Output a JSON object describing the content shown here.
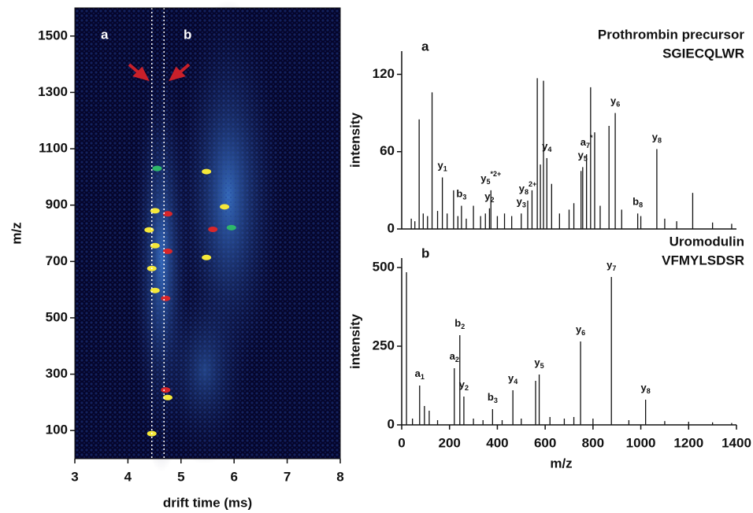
{
  "chart_data": [
    {
      "type": "heatmap",
      "xlabel": "drift time (ms)",
      "ylabel": "m/z",
      "xlim": [
        3,
        8
      ],
      "xticks": [
        3,
        4,
        5,
        6,
        7,
        8
      ],
      "ylim": [
        0,
        1600
      ],
      "yticks": [
        100,
        300,
        500,
        700,
        900,
        1100,
        1300,
        1500
      ],
      "x": [
        4.51,
        4.75,
        5.48,
        5.82,
        5.6,
        5.48,
        4.51,
        4.75,
        4.45,
        4.51,
        4.71,
        4.71,
        4.75,
        4.45,
        4.55,
        5.95,
        4.4
      ],
      "y": [
        880,
        869,
        1019,
        894,
        814,
        714,
        756,
        736,
        675,
        597,
        569,
        244,
        217,
        89,
        1030,
        820,
        812
      ],
      "colors": [
        "#f5e83a",
        "#d8262a",
        "#f5e83a",
        "#f5e83a",
        "#d8262a",
        "#f5e83a",
        "#f5e83a",
        "#d8262a",
        "#f5e83a",
        "#f5e83a",
        "#d8262a",
        "#d8262a",
        "#f5e83a",
        "#f5e83a",
        "#2eb86a",
        "#2eb86a",
        "#f5e83a"
      ],
      "markers": [
        {
          "label": "a",
          "x": 4.45
        },
        {
          "label": "b",
          "x": 4.68
        }
      ]
    },
    {
      "type": "spectrum",
      "label": "a",
      "title": "Prothrombin precursor",
      "subtitle": "SGIECQLWR",
      "ylabel": "intensity",
      "xlim": [
        0,
        1400
      ],
      "ylim": [
        0,
        138
      ],
      "yticks": [
        0,
        60,
        120
      ],
      "color": "#111",
      "x": [
        40,
        55,
        73,
        90,
        108,
        127,
        150,
        170,
        190,
        217,
        235,
        250,
        270,
        300,
        330,
        350,
        367,
        373,
        400,
        430,
        460,
        500,
        527,
        545,
        567,
        580,
        593,
        607,
        627,
        660,
        700,
        720,
        750,
        757,
        773,
        790,
        807,
        830,
        867,
        893,
        920,
        987,
        1000,
        1067,
        1100,
        1150,
        1217,
        1300,
        1380
      ],
      "values": [
        8,
        6,
        85,
        12,
        10,
        106,
        14,
        40,
        12,
        30,
        10,
        18,
        8,
        18,
        10,
        12,
        16,
        30,
        10,
        12,
        10,
        12,
        22,
        30,
        117,
        50,
        115,
        55,
        35,
        12,
        15,
        20,
        45,
        48,
        58,
        110,
        75,
        18,
        80,
        90,
        15,
        12,
        10,
        62,
        8,
        6,
        28,
        5,
        4
      ],
      "annotations": [
        {
          "text": "y",
          "sub": "1",
          "x": 170
        },
        {
          "text": "b",
          "sub": "3",
          "x": 250
        },
        {
          "text": "y",
          "sub": "2",
          "x": 367
        },
        {
          "text": "y",
          "sub": "5",
          "sup": "*2+",
          "x": 373
        },
        {
          "text": "y",
          "sub": "3",
          "x": 500
        },
        {
          "text": "y",
          "sub": "8",
          "sup": "2+",
          "x": 527
        },
        {
          "text": "y",
          "sub": "4",
          "x": 607
        },
        {
          "text": "a",
          "sub": "7",
          "sup": "*",
          "x": 773
        },
        {
          "text": "y",
          "sub": "5",
          "x": 757
        },
        {
          "text": "y",
          "sub": "6",
          "x": 893
        },
        {
          "text": "b",
          "sub": "8",
          "x": 987
        },
        {
          "text": "y",
          "sub": "8",
          "x": 1067
        }
      ]
    },
    {
      "type": "spectrum",
      "label": "b",
      "title": "Uromodulin",
      "subtitle": "VFMYLSDSR",
      "ylabel": "intensity",
      "xlabel": "m/z",
      "xlim": [
        0,
        1400
      ],
      "xticks": [
        0,
        200,
        400,
        600,
        800,
        1000,
        1200,
        1400
      ],
      "ylim": [
        0,
        530
      ],
      "yticks": [
        0,
        250,
        500
      ],
      "color": "#111",
      "x": [
        20,
        45,
        75,
        95,
        115,
        150,
        220,
        243,
        260,
        300,
        340,
        380,
        420,
        465,
        500,
        560,
        575,
        620,
        680,
        720,
        748,
        800,
        877,
        950,
        1020,
        1100,
        1200,
        1300,
        1380
      ],
      "values": [
        485,
        20,
        125,
        60,
        45,
        15,
        180,
        285,
        90,
        20,
        15,
        50,
        15,
        110,
        20,
        140,
        160,
        25,
        20,
        25,
        265,
        20,
        470,
        15,
        80,
        12,
        10,
        8,
        6
      ],
      "annotations": [
        {
          "text": "a",
          "sub": "1",
          "x": 75
        },
        {
          "text": "a",
          "sub": "2",
          "x": 220
        },
        {
          "text": "b",
          "sub": "2",
          "x": 243
        },
        {
          "text": "y",
          "sub": "2",
          "x": 260
        },
        {
          "text": "b",
          "sub": "3",
          "x": 380
        },
        {
          "text": "y",
          "sub": "4",
          "x": 465
        },
        {
          "text": "y",
          "sub": "5",
          "x": 575
        },
        {
          "text": "y",
          "sub": "6",
          "x": 748
        },
        {
          "text": "y",
          "sub": "7",
          "x": 877
        },
        {
          "text": "y",
          "sub": "8",
          "x": 1020
        }
      ]
    }
  ]
}
